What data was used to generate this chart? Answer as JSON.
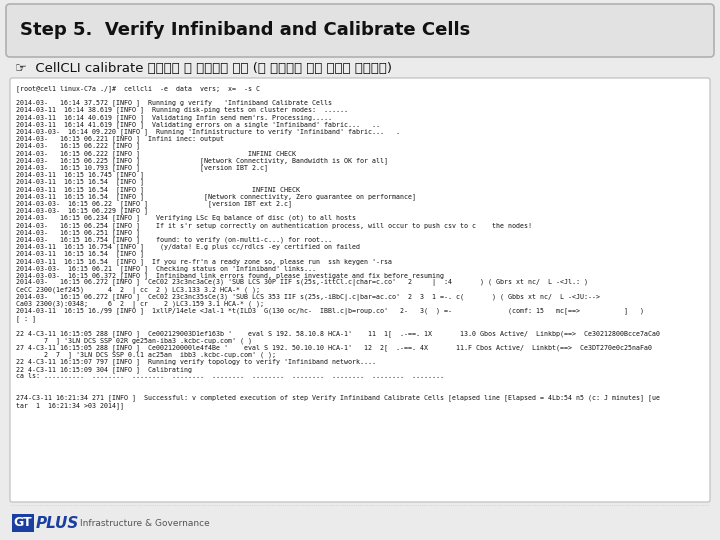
{
  "bg_color": "#ebebeb",
  "title_box_color": "#e2e2e2",
  "title_box_border": "#b0b0b0",
  "title_text": "Step 5.  Verify Infiniband and Calibrate Cells",
  "title_fontsize": 13,
  "subtitle_text": "☞  CellCLI calibrate 명령으로 셀 디스크를 확인 (셀 디스크의 성능 특성을 테스트함)",
  "subtitle_fontsize": 9.5,
  "terminal_bg": "#ffffff",
  "terminal_border": "#bbbbbb",
  "terminal_fontsize": 4.8,
  "terminal_text": "[root@cel1 linux-C7a ./]#  cellcli  -e  data  vers;  x=  -s C\n\n2014-03-   16:14 37.572 [INFO ]  Running g verify   'Infiniband Calibrate Cells\n2014-03-11  16:14 38.619 [INFO ]  Running disk-ping tests on cluster modes:  ......\n2014-03-11  16:14 40.619 [INFO ]  Validating Infin send mem'rs. Processing.....\n2014-03-11  16:14 41.619 [INFO ]  Validating errors on a single 'Infiniband' fabric...   ..\n2014-03-03-  16:14 09.220 [INFO ]  Running 'Infinistructure to verify 'Infiniband' fabric...   .\n2014-03-   16:15 06.221 [INFO ]  Infini inec: output\n2014-03-   16:15 06.222 [INFO ]  \n2014-03-   16:15 06.222 [INFO ]                           INFINI CHECK\n2014-03-   16:15 06.225 [INFO ]               [Network Connectivity, Bandwidth is OK for all]\n2014-03-   16:15 10.793 [INFO ]               [version IBT 2.c]\n2014-03-11  16:15 16.745 [INFO ]  \n2014-03-11  16:15 16.54  [INFO ]  \n2014-03-11  16:15 16.54  [INFO ]                           INFINI CHECK\n2014-03-11  16:15 16.54  [INFO ]               [Network connectivity, Zero guarantee on performance]\n2014-03-03-  16:15 06.22  [INFO ]               [version IBT ext 2.c]\n2014-03-03-  16:15 06.229 [INFO ]  \n2014-03-   16:15 06.234 [INFO ]    Verifying LSc Eq balance of disc (ot) to all hosts\n2014-03-   16:15 06.254 [INFO ]    If it s'r setup correctly on authentication process, will occur to push csv to c    the nodes!\n2014-03-   16:15 06.251 [INFO ]  \n2014-03-   16:15 16.754 [INFO ]    found: to verify (on-multi-c...) for root...\n2014-03-11  16:15 16.754 [INFO ]    (y/data! E.g plus cc/rdlcs -ey certified on failed\n2014-03-11  16:15 16.54  [INFO ]  \n2014-03-11  16:15 16.54  [INFO ]  If you re-fr'n a ready zone so, please run  ssh keygen '-rsa\n2014-03-03-  16:15 06.21  [INFO ]  Checking status on 'Infiniband' links...\n2014-03-03-  16:15 06.372 [INFO ]  Infiniband link errors found, please investigate and fix before resuming\n2014-03-   16:15 06.272 [INFO ]  CeC02 23c3nc3aCe(3) 'SUB LCS 30P IIF s(25s,-ittCl.c|char=c.co'   2     |  :4       ) ( Gbrs xt nc/  L -<Jl.: )\nCeCC 2300(1ef245)      4  2  | cc  2 ) LC3.133 3.2 HCA-* ( );\n2014-03-   16:15 06.272 [INFO ]  CeC02 23c3nc35sCe(3) 'SUB LCS 353 IIF s(25s,-iBbC|.c|bar=ac.co'  2  3  1 =-. c(       ) ( Gbbs xt nc/  L -<JU:-->\nCa03 2300(3):0348;     6  2  | cr    2 )LC3.159 3.1 HCA-* ( );\n2014-03-11  16:15 16./99 [INFO ]  1xllP/14ele <Jal-1 *t(ILD3  G(130 oc/hc-  IBBl.c|b=roup.co'   2-   3(  ) =-              (comf: 15   mc[==>           ]   )\n[ : ]\n\n22 4-C3-11 16:15:05 288 [INFO ]  Ce002129003D1ef163b '    eval S 192. 58.10.8 HCA-1'    11  1[  .-==. 1X       13.0 Gbos Active/  Linkbp(==>  Ce30212800Bcce7aCa0\n       7  ] '3LN DCS SSP 02R ge25an-iba3 .kcbc-cup.com' ( )\n27 4-C3-11 16:15:05 288 [INFO ]  Ce002120000le4f4Be '    eval S 192. 50.10.10 HCA-1'   12  2[  .-==. 4X       11.F Cbos Active/  Linkbt(==>  Ce3DT270e0c25naFa0\n       2  7  ] '3LN DCS SSP 0.l1 ac25an  ibb3 .kcbc-cup.com' ( );\n22 4-C3-11 16:15:07 797 [INFO ]  Running verify topology to verify 'Infiniband network....\n22 4-C3-11 16:15:09 304 [INFO ]  Calibrating\nca ls: ..........  ........  ........  ........  ........  ........  ........  ........  ........  ........\n\n\n274-C3-11 16:21:34 271 [INFO ]  Successful: v completed execution of step Verify Infiniband Calibrate Cells [elapsed line [Elapsed = 4Lb:54 n5 (c: J minutes] [ue\ntar  1  16:21:34 >03 2014]]",
  "logo_gt_color": "#1a3fa0",
  "logo_plus_color": "#1a3fa0",
  "logo_sub_text": "Infrastructure & Governance",
  "footer_line_color": "#cccccc",
  "logo_gt_bg": "#1a3fa0"
}
